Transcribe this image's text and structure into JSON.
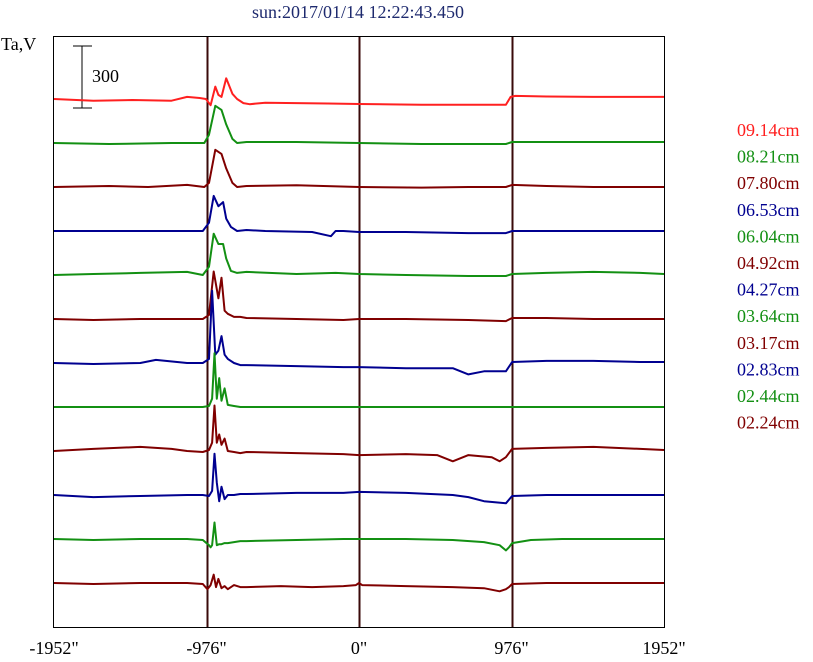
{
  "chart_data": {
    "type": "line",
    "title": "sun:2017/01/14 12:22:43.450",
    "ylabel": "Ta,V",
    "scale_bar_label": "300",
    "xlim": [
      -1952,
      1952
    ],
    "x_ticks": [
      {
        "value": -1952,
        "label": "-1952\""
      },
      {
        "value": -976,
        "label": "-976\""
      },
      {
        "value": 0,
        "label": "0\""
      },
      {
        "value": 976,
        "label": "976\""
      },
      {
        "value": 1952,
        "label": "1952\""
      }
    ],
    "vertical_lines": [
      -976,
      0,
      976
    ],
    "colors": {
      "red": "#ff2020",
      "green": "#139013",
      "darkred": "#800000",
      "blue": "#000090"
    },
    "series": [
      {
        "name": "09.14cm",
        "color": "#ff2020",
        "x": [
          -1952,
          -1700,
          -1450,
          -1200,
          -1100,
          -1020,
          -980,
          -950,
          -920,
          -900,
          -880,
          -850,
          -810,
          -780,
          -740,
          -700,
          -600,
          -400,
          -200,
          0,
          200,
          400,
          700,
          940,
          970,
          1000,
          1200,
          1500,
          1800,
          1952
        ],
        "y": [
          0,
          -8,
          -5,
          -8,
          10,
          5,
          0,
          -30,
          60,
          20,
          10,
          100,
          25,
          0,
          -20,
          -25,
          -18,
          -20,
          -22,
          -24,
          -26,
          -28,
          -28,
          -28,
          10,
          15,
          12,
          10,
          10,
          10
        ]
      },
      {
        "name": "08.21cm",
        "color": "#139013",
        "x": [
          -1952,
          -1600,
          -1200,
          -1050,
          -990,
          -960,
          -920,
          -880,
          -850,
          -810,
          -780,
          -720,
          -400,
          0,
          400,
          700,
          940,
          980,
          1200,
          1500,
          1800,
          1952
        ],
        "y": [
          0,
          -5,
          0,
          0,
          0,
          40,
          180,
          160,
          90,
          20,
          0,
          5,
          5,
          0,
          -5,
          -5,
          -5,
          5,
          5,
          5,
          5,
          5
        ]
      },
      {
        "name": "07.80cm",
        "color": "#800000",
        "x": [
          -1952,
          -1600,
          -1350,
          -1100,
          -990,
          -960,
          -920,
          -880,
          -850,
          -810,
          -780,
          -720,
          -400,
          0,
          400,
          700,
          940,
          980,
          1200,
          1500,
          1800,
          1952
        ],
        "y": [
          0,
          5,
          0,
          10,
          0,
          20,
          180,
          160,
          90,
          20,
          0,
          5,
          8,
          0,
          -3,
          0,
          0,
          10,
          5,
          0,
          0,
          0
        ]
      },
      {
        "name": "06.53cm",
        "color": "#000090",
        "x": [
          -1952,
          -1600,
          -1100,
          -1000,
          -960,
          -930,
          -900,
          -870,
          -850,
          -820,
          -780,
          -720,
          -600,
          -300,
          -180,
          -150,
          -100,
          0,
          300,
          700,
          940,
          980,
          1200,
          1800,
          1952
        ],
        "y": [
          0,
          0,
          0,
          0,
          40,
          170,
          120,
          140,
          60,
          20,
          0,
          5,
          0,
          -5,
          -25,
          0,
          0,
          -5,
          -5,
          -10,
          -10,
          0,
          0,
          0,
          0
        ]
      },
      {
        "name": "06.04cm",
        "color": "#139013",
        "x": [
          -1952,
          -1700,
          -1400,
          -1100,
          -1000,
          -960,
          -930,
          -900,
          -870,
          -850,
          -820,
          -780,
          -720,
          -400,
          -150,
          0,
          300,
          700,
          940,
          980,
          1200,
          1500,
          1800,
          1952
        ],
        "y": [
          0,
          5,
          10,
          15,
          0,
          40,
          200,
          150,
          150,
          80,
          20,
          10,
          15,
          5,
          10,
          5,
          0,
          -5,
          -5,
          5,
          10,
          15,
          10,
          5
        ]
      },
      {
        "name": "04.92cm",
        "color": "#800000",
        "x": [
          -1952,
          -1700,
          -1400,
          -1100,
          -1000,
          -960,
          -930,
          -900,
          -880,
          -860,
          -840,
          -800,
          -760,
          -720,
          -400,
          -100,
          0,
          300,
          700,
          940,
          980,
          1200,
          1500,
          1800,
          1952
        ],
        "y": [
          0,
          -5,
          0,
          0,
          0,
          20,
          230,
          100,
          200,
          40,
          25,
          10,
          10,
          5,
          0,
          -5,
          0,
          0,
          -5,
          -10,
          5,
          5,
          0,
          0,
          0
        ]
      },
      {
        "name": "04.27cm",
        "color": "#000090",
        "x": [
          -1952,
          -1700,
          -1400,
          -1300,
          -1100,
          -1000,
          -960,
          -940,
          -920,
          -900,
          -880,
          -860,
          -840,
          -800,
          -760,
          -720,
          -400,
          -100,
          0,
          300,
          600,
          700,
          800,
          940,
          980,
          1200,
          1500,
          1800,
          1952
        ],
        "y": [
          0,
          -5,
          0,
          15,
          0,
          0,
          20,
          350,
          40,
          60,
          130,
          40,
          20,
          0,
          -10,
          -10,
          -15,
          -20,
          -20,
          -25,
          -25,
          -55,
          -40,
          -40,
          5,
          10,
          10,
          5,
          5
        ]
      },
      {
        "name": "03.64cm",
        "color": "#139013",
        "x": [
          -1952,
          -1700,
          -1400,
          -1100,
          -1000,
          -960,
          -940,
          -925,
          -910,
          -895,
          -880,
          -860,
          -840,
          -800,
          -760,
          -720,
          -400,
          0,
          400,
          700,
          940,
          980,
          1200,
          1500,
          1800,
          1952
        ],
        "y": [
          0,
          0,
          0,
          0,
          0,
          5,
          40,
          260,
          40,
          140,
          30,
          90,
          10,
          5,
          0,
          0,
          0,
          0,
          0,
          0,
          0,
          0,
          0,
          0,
          0,
          0
        ]
      },
      {
        "name": "03.17cm",
        "color": "#800000",
        "x": [
          -1952,
          -1700,
          -1400,
          -1200,
          -1100,
          -1000,
          -960,
          -940,
          -925,
          -910,
          -895,
          -880,
          -860,
          -840,
          -800,
          -760,
          -720,
          -400,
          -100,
          0,
          300,
          500,
          600,
          700,
          850,
          900,
          940,
          980,
          1200,
          1500,
          1800,
          1952
        ],
        "y": [
          0,
          10,
          20,
          10,
          0,
          -5,
          5,
          40,
          220,
          40,
          80,
          30,
          60,
          0,
          -5,
          -10,
          -5,
          -10,
          -15,
          -20,
          -15,
          -20,
          -50,
          -20,
          -30,
          -50,
          -30,
          10,
          15,
          20,
          10,
          5
        ]
      },
      {
        "name": "02.83cm",
        "color": "#000090",
        "x": [
          -1952,
          -1700,
          -1400,
          -1100,
          -1000,
          -960,
          -940,
          -925,
          -910,
          -895,
          -880,
          -860,
          -840,
          -800,
          -760,
          -720,
          -400,
          -100,
          0,
          300,
          600,
          700,
          800,
          940,
          980,
          1200,
          1500,
          1800,
          1952
        ],
        "y": [
          0,
          -10,
          -5,
          0,
          0,
          -5,
          20,
          200,
          60,
          -30,
          40,
          -20,
          0,
          0,
          5,
          5,
          10,
          10,
          15,
          10,
          0,
          -10,
          -30,
          -40,
          -5,
          0,
          0,
          0,
          0
        ]
      },
      {
        "name": "02.44cm",
        "color": "#139013",
        "x": [
          -1952,
          -1700,
          -1400,
          -1100,
          -1000,
          -960,
          -950,
          -940,
          -925,
          -910,
          -895,
          -880,
          -860,
          -840,
          -800,
          -760,
          -720,
          -400,
          -100,
          0,
          300,
          600,
          800,
          900,
          940,
          960,
          980,
          1100,
          1300,
          1500,
          1800,
          1952
        ],
        "y": [
          0,
          -5,
          0,
          0,
          -5,
          -30,
          -40,
          -30,
          80,
          -30,
          -25,
          -25,
          -20,
          -20,
          -15,
          -10,
          -10,
          -5,
          0,
          0,
          0,
          -5,
          -15,
          -30,
          -55,
          -40,
          -20,
          -5,
          0,
          0,
          0,
          0
        ]
      },
      {
        "name": "02.24cm",
        "color": "#800000",
        "x": [
          -1952,
          -1700,
          -1400,
          -1100,
          -1000,
          -970,
          -950,
          -930,
          -915,
          -900,
          -880,
          -860,
          -840,
          -800,
          -760,
          -720,
          -500,
          -300,
          -100,
          -20,
          0,
          20,
          300,
          600,
          800,
          900,
          940,
          960,
          980,
          1200,
          1500,
          1800,
          1952
        ],
        "y": [
          0,
          -5,
          0,
          0,
          -5,
          -30,
          -10,
          40,
          -20,
          20,
          -25,
          -15,
          -30,
          -10,
          -20,
          -20,
          -15,
          -20,
          -15,
          -10,
          0,
          -10,
          -15,
          -20,
          -25,
          -40,
          -30,
          -20,
          -5,
          0,
          0,
          0,
          0
        ]
      }
    ]
  }
}
